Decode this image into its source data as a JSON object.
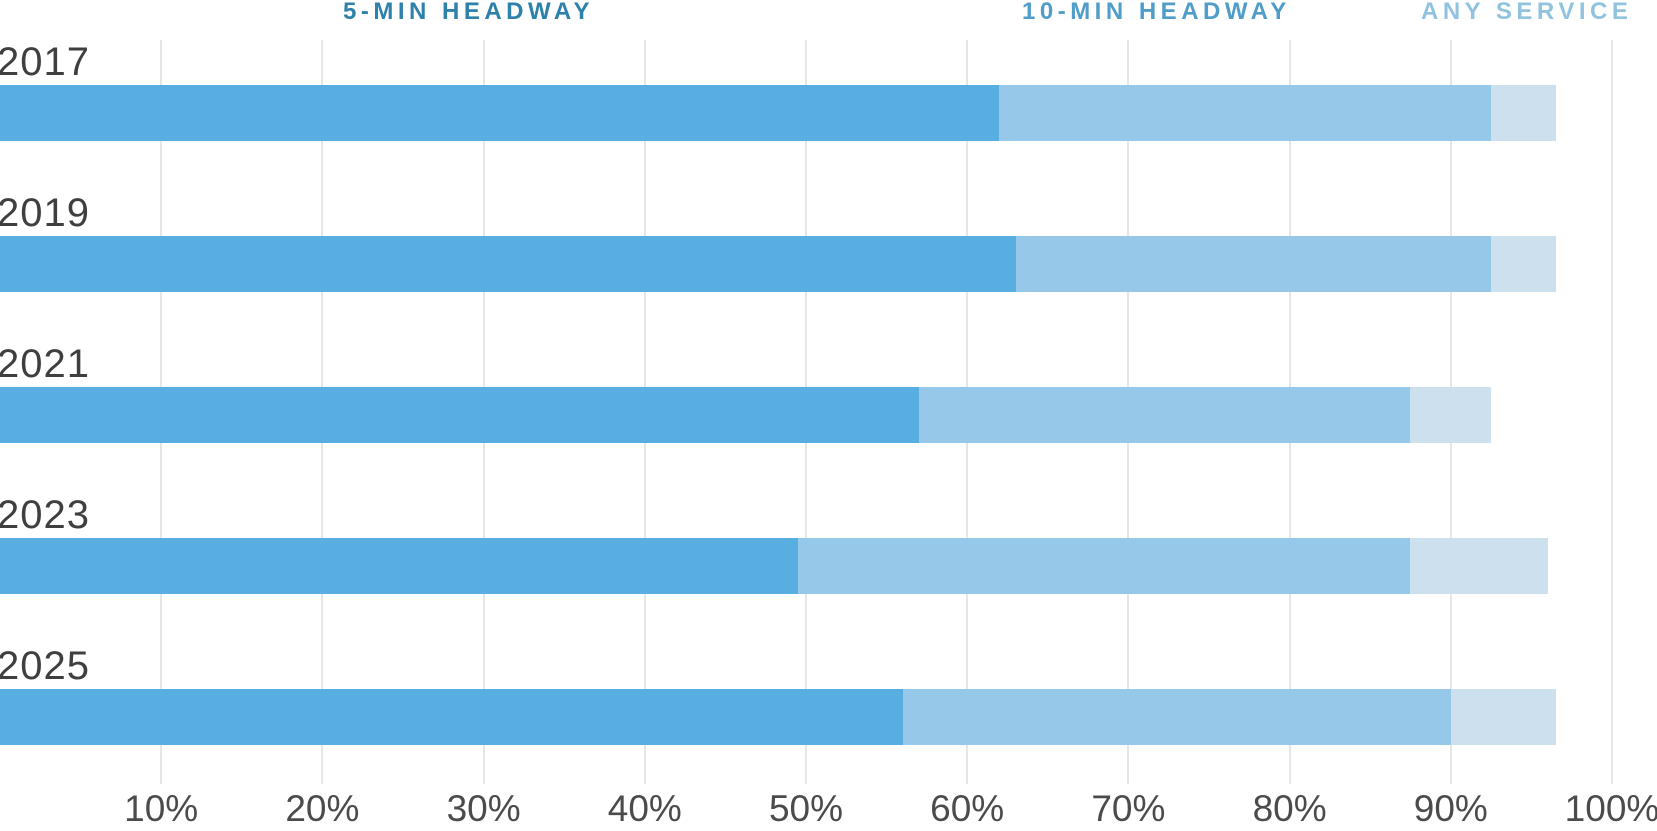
{
  "header": {
    "labels": [
      {
        "text": "5-MIN HEADWAY",
        "color": "#2d81aa"
      },
      {
        "text": "10-MIN HEADWAY",
        "color": "#4f9dc8"
      },
      {
        "text": "ANY SERVICE",
        "color": "#91c3df"
      }
    ]
  },
  "chart_data": {
    "type": "bar",
    "orientation": "horizontal",
    "stacked": true,
    "title": "",
    "xlabel": "",
    "ylabel": "",
    "categories": [
      "2017",
      "2019",
      "2021",
      "2023",
      "2025"
    ],
    "series": [
      {
        "name": "5-MIN HEADWAY",
        "color": "#58ade1",
        "values": [
          62,
          63,
          57,
          49.5,
          56
        ]
      },
      {
        "name": "10-MIN HEADWAY",
        "color": "#96c9e9",
        "values": [
          30.5,
          29.5,
          30.5,
          38,
          34
        ]
      },
      {
        "name": "ANY SERVICE",
        "color": "#cde0ee",
        "values": [
          4,
          4,
          5,
          8.5,
          6.5
        ]
      }
    ],
    "cumulative_ends": {
      "5_min": [
        62,
        63,
        57,
        49.5,
        56
      ],
      "10_min": [
        92.5,
        92.5,
        87.5,
        87.5,
        90
      ],
      "any_service": [
        96.5,
        96.5,
        92.5,
        96,
        96.5
      ]
    },
    "xlim": [
      0,
      100
    ],
    "x_ticks": [
      "10%",
      "20%",
      "30%",
      "40%",
      "50%",
      "60%",
      "70%",
      "80%",
      "90%",
      "100%"
    ],
    "grid": true,
    "gridline_color": "#e6e6e6",
    "legend_position": "top"
  }
}
